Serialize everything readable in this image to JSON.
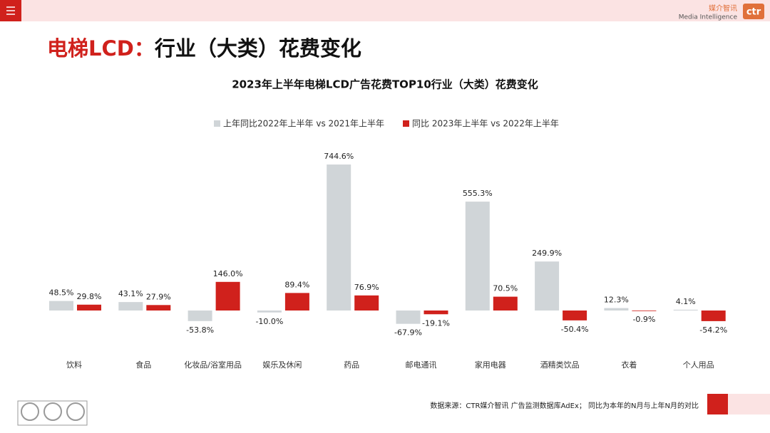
{
  "header": {
    "logo_cn": "媒介智讯",
    "logo_en": "Media Intelligence",
    "logo_mark": "ctr"
  },
  "slide_title": {
    "highlight": "电梯LCD：",
    "rest": "行业（大类）花费变化"
  },
  "chart_data": {
    "type": "bar",
    "title": "2023年上半年电梯LCD广告花费TOP10行业（大类）花费变化",
    "categories": [
      "饮料",
      "食品",
      "化妆品/浴室用品",
      "娱乐及休闲",
      "药品",
      "邮电通讯",
      "家用电器",
      "酒精类饮品",
      "衣着",
      "个人用品"
    ],
    "series": [
      {
        "name": "上年同比2022年上半年 vs 2021年上半年",
        "color": "#d0d5d8",
        "values": [
          48.5,
          43.1,
          -53.8,
          -10.0,
          744.6,
          -67.9,
          555.3,
          249.9,
          12.3,
          4.1
        ],
        "value_labels": [
          "48.5%",
          "43.1%",
          "-53.8%",
          "-10.0%",
          "744.6%",
          "-67.9%",
          "555.3%",
          "249.9%",
          "12.3%",
          "4.1%"
        ]
      },
      {
        "name": "同比 2023年上半年 vs 2022年上半年",
        "color": "#d0211c",
        "values": [
          29.8,
          27.9,
          146.0,
          89.4,
          76.9,
          -19.1,
          70.5,
          -50.4,
          -0.9,
          -54.2
        ],
        "value_labels": [
          "29.8%",
          "27.9%",
          "146.0%",
          "89.4%",
          "76.9%",
          "-19.1%",
          "70.5%",
          "-50.4%",
          "-0.9%",
          "-54.2%"
        ]
      }
    ],
    "legend": "top"
  },
  "footer": {
    "source": "数据来源：CTR媒介智讯 广告监测数据库AdEx； 同比为本年的N月与上年N月的对比"
  }
}
